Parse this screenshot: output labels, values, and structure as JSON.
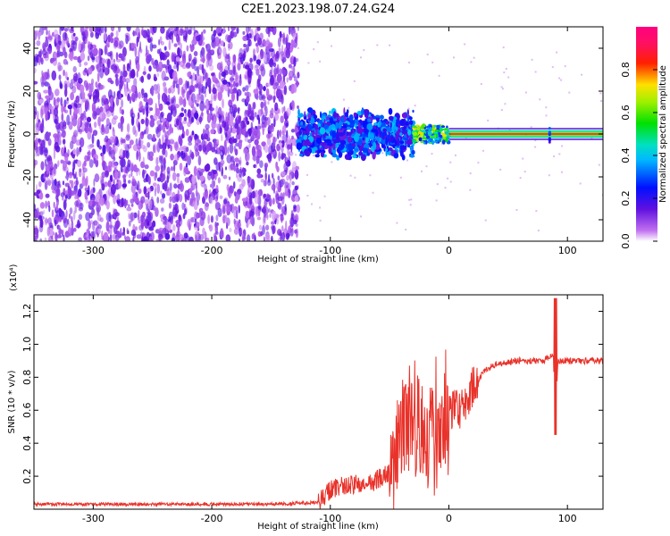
{
  "title": "C2E1.2023.198.07.24.G24",
  "chart_data": [
    {
      "type": "heatmap",
      "title": "C2E1.2023.198.07.24.G24",
      "xlabel": "Height of straight line (km)",
      "ylabel": "Frequency (Hz)",
      "xlim": [
        -350,
        130
      ],
      "ylim": [
        -50,
        50
      ],
      "xticks": [
        -300,
        -200,
        -100,
        0,
        100
      ],
      "yticks": [
        -40,
        -20,
        0,
        20,
        40
      ],
      "colorbar": {
        "label": "Normalized spectral amplitude",
        "range": [
          0,
          1
        ],
        "ticks": [
          "0.0",
          "0.2",
          "0.4",
          "0.6",
          "0.8"
        ],
        "colormap": "rainbow (white-violet-blue-cyan-green-yellow-red-magenta)"
      },
      "regions": [
        {
          "x": [
            -350,
            -127
          ],
          "freq_spread": [
            -50,
            50
          ],
          "amplitude": 0.1
        },
        {
          "x": [
            -127,
            -30
          ],
          "freq_spread": [
            -15,
            12
          ],
          "amplitude": 0.25
        },
        {
          "x": [
            -30,
            0
          ],
          "freq_spread": [
            -4,
            4
          ],
          "amplitude": 0.5
        },
        {
          "x": [
            0,
            130
          ],
          "freq_spread": [
            -1,
            1
          ],
          "amplitude": 0.9
        }
      ]
    },
    {
      "type": "line",
      "xlabel": "Height of straight line (km)",
      "ylabel": "SNR (10 * v/v)",
      "y_multiplier": "(x10⁴)",
      "xlim": [
        -350,
        130
      ],
      "ylim": [
        0,
        1.3
      ],
      "xticks": [
        -300,
        -200,
        -100,
        0,
        100
      ],
      "yticks": [
        0.2,
        0.4,
        0.6,
        0.8,
        1.0,
        1.2
      ],
      "color": "#e8322a",
      "series": [
        {
          "x": [
            -350,
            -300,
            -250,
            -200,
            -150,
            -110,
            -100,
            -90,
            -80,
            -70,
            -60,
            -50,
            -45,
            -40,
            -35,
            -30,
            -25,
            -20,
            -15,
            -10,
            -5,
            0,
            5,
            10,
            15,
            20,
            30,
            40,
            60,
            80,
            88,
            90,
            92,
            100,
            130
          ],
          "y": [
            0.03,
            0.03,
            0.03,
            0.03,
            0.03,
            0.04,
            0.12,
            0.14,
            0.15,
            0.14,
            0.18,
            0.22,
            0.32,
            0.45,
            0.5,
            0.55,
            0.48,
            0.45,
            0.45,
            0.5,
            0.6,
            0.58,
            0.62,
            0.6,
            0.65,
            0.74,
            0.84,
            0.88,
            0.9,
            0.9,
            0.95,
            0.55,
            0.9,
            0.9,
            0.9
          ]
        }
      ]
    }
  ]
}
